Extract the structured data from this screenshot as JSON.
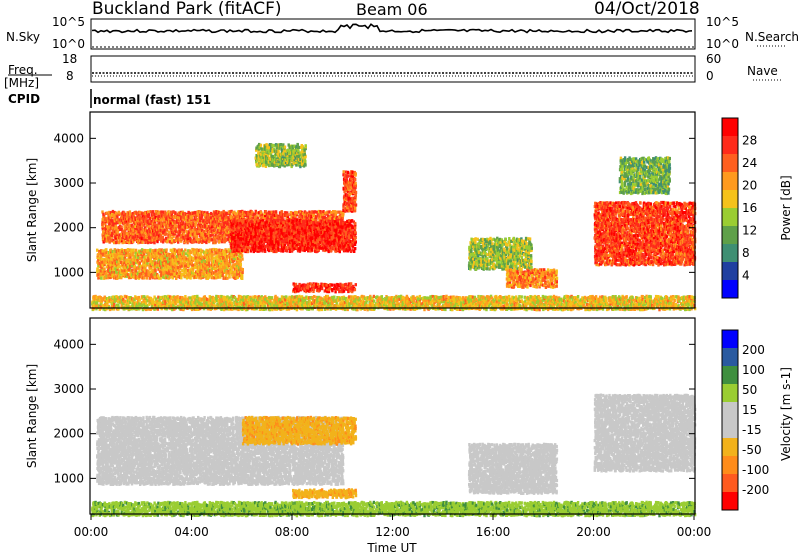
{
  "header": {
    "station": "Buckland Park (fitACF)",
    "beam": "Beam 06",
    "date": "04/Oct/2018"
  },
  "summary": {
    "nsky_label": "N.Sky",
    "nsearch_label": "N.Search",
    "freq_label": "Freq.",
    "freq_unit": "[MHz]",
    "nave_label": "Nave",
    "cpid_label": "CPID",
    "cpid_value": "normal (fast) 151",
    "noise_ticks": [
      "10^5",
      "10^0"
    ],
    "freq_ticks": [
      "18",
      "8"
    ],
    "nave_ticks": [
      "60",
      "0"
    ]
  },
  "colors": {
    "power": [
      "#0000ff",
      "#2040a0",
      "#3f8f73",
      "#5fa049",
      "#9acd32",
      "#f5c21b",
      "#ff9a1f",
      "#ff5f1f",
      "#ff2a1a",
      "#ff0000"
    ],
    "velocity": [
      "#ff0000",
      "#ff5a1f",
      "#ff8c1a",
      "#f2b21b",
      "#c8c8c8",
      "#c8c8c8",
      "#9acd32",
      "#3f8f3f",
      "#2a5aa0",
      "#0000ff"
    ]
  },
  "chart_data": [
    {
      "type": "heatmap",
      "name": "power",
      "title": "",
      "xlabel": "Time UT",
      "ylabel": "Slant Range [km]",
      "xlim": [
        "00:00",
        "00:00"
      ],
      "x_ticks": [
        "00:00",
        "04:00",
        "08:00",
        "12:00",
        "16:00",
        "20:00",
        "00:00"
      ],
      "ylim": [
        180,
        4500
      ],
      "y_ticks": [
        1000,
        2000,
        3000,
        4000
      ],
      "colorbar_label": "Power [dB]",
      "colorbar_ticks": [
        4,
        8,
        12,
        16,
        20,
        24,
        28
      ],
      "regions": [
        {
          "t": [
            0.0,
            24.0
          ],
          "r": [
            200,
            500
          ],
          "value": 18
        },
        {
          "t": [
            0.2,
            6.0
          ],
          "r": [
            900,
            1550
          ],
          "value": 20
        },
        {
          "t": [
            0.4,
            10.0
          ],
          "r": [
            1700,
            2400
          ],
          "value": 24
        },
        {
          "t": [
            5.5,
            10.5
          ],
          "r": [
            1500,
            2200
          ],
          "value": 28
        },
        {
          "t": [
            8.0,
            10.5
          ],
          "r": [
            600,
            780
          ],
          "value": 28
        },
        {
          "t": [
            10.0,
            10.5
          ],
          "r": [
            2400,
            3300
          ],
          "value": 26
        },
        {
          "t": [
            6.5,
            8.5
          ],
          "r": [
            3400,
            3900
          ],
          "value": 14
        },
        {
          "t": [
            15.0,
            17.5
          ],
          "r": [
            1100,
            1800
          ],
          "value": 14
        },
        {
          "t": [
            16.5,
            18.5
          ],
          "r": [
            700,
            1100
          ],
          "value": 22
        },
        {
          "t": [
            20.0,
            24.0
          ],
          "r": [
            1200,
            2600
          ],
          "value": 26
        },
        {
          "t": [
            21.0,
            23.0
          ],
          "r": [
            2800,
            3600
          ],
          "value": 12
        }
      ]
    },
    {
      "type": "heatmap",
      "name": "velocity",
      "title": "",
      "xlabel": "Time UT",
      "ylabel": "Slant Range [km]",
      "xlim": [
        "00:00",
        "00:00"
      ],
      "x_ticks": [
        "00:00",
        "04:00",
        "08:00",
        "12:00",
        "16:00",
        "20:00",
        "00:00"
      ],
      "ylim": [
        180,
        4500
      ],
      "y_ticks": [
        1000,
        2000,
        3000,
        4000
      ],
      "colorbar_label": "Velocity [m s-1]",
      "colorbar_ticks": [
        200,
        100,
        50,
        15,
        -15,
        -50,
        -100,
        -200
      ],
      "regions": [
        {
          "t": [
            0.0,
            24.0
          ],
          "r": [
            200,
            500
          ],
          "value": 40
        },
        {
          "t": [
            0.2,
            10.0
          ],
          "r": [
            900,
            2400
          ],
          "value": 0
        },
        {
          "t": [
            6.0,
            10.5
          ],
          "r": [
            1800,
            2400
          ],
          "value": -40
        },
        {
          "t": [
            8.0,
            10.5
          ],
          "r": [
            600,
            780
          ],
          "value": -40
        },
        {
          "t": [
            15.0,
            18.5
          ],
          "r": [
            700,
            1800
          ],
          "value": 0
        },
        {
          "t": [
            20.0,
            24.0
          ],
          "r": [
            1200,
            2900
          ],
          "value": 0
        }
      ]
    }
  ]
}
